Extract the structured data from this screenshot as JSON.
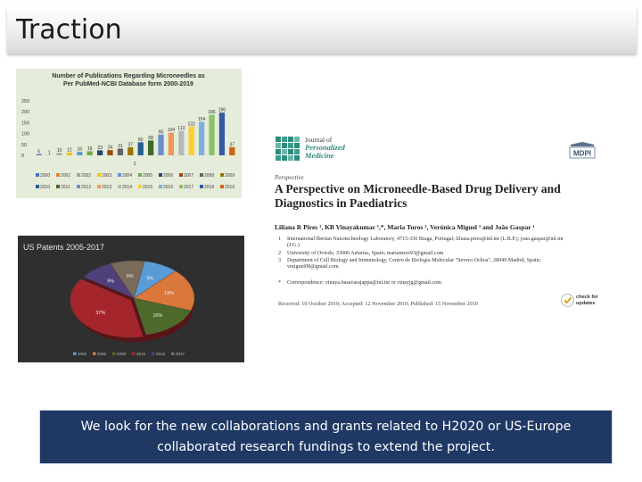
{
  "slide": {
    "title": "Traction"
  },
  "colors": {
    "banner": "#1f3864",
    "chart1_bg": "#e5ecd9",
    "chart2_bg": "#2f2f2f",
    "journal_accent": "#2e8a7a"
  },
  "chart_data": [
    {
      "type": "bar",
      "title": "Number of Publications Regarding Microneedles as Per PubMed-NCBI Database form 2000-2019",
      "categories": [
        "2000",
        "2001",
        "2002",
        "2003",
        "2004",
        "2005",
        "2006",
        "2007",
        "2008",
        "2009",
        "2010",
        "2011",
        "2012",
        "2013",
        "2014",
        "2015",
        "2016",
        "2017",
        "2018",
        "2019"
      ],
      "values": [
        5,
        1,
        10,
        12,
        16,
        19,
        23,
        24,
        31,
        37,
        60,
        68,
        95,
        104,
        113,
        132,
        154,
        186,
        196,
        37
      ],
      "value_labels": [
        "5",
        "1",
        "10",
        "12",
        "16",
        "19",
        "23",
        "24",
        "31",
        "37",
        "60",
        "68",
        "95",
        "104",
        "113",
        "132",
        "154",
        "186",
        "196",
        "37"
      ],
      "extra_label": "1",
      "yticks": [
        "250",
        "200",
        "150",
        "100",
        "50",
        "0"
      ],
      "ylim": [
        0,
        250
      ],
      "legend": [
        "2000",
        "2001",
        "2002",
        "2003",
        "2004",
        "2005",
        "2006",
        "2007",
        "2008",
        "2009",
        "2010",
        "2011",
        "2012",
        "2013",
        "2014",
        "2015",
        "2016",
        "2017",
        "2018",
        "2019"
      ],
      "colors": [
        "#4472c4",
        "#ed7d31",
        "#a5a5a5",
        "#ffc000",
        "#5b9bd5",
        "#70ad47",
        "#264478",
        "#9e480e",
        "#636363",
        "#997300",
        "#255e91",
        "#43682b",
        "#698ed0",
        "#f1975a",
        "#b7b7b7",
        "#ffcd33",
        "#7cafdd",
        "#8cc168",
        "#335aa1",
        "#d26012"
      ],
      "legend_placement": "bottom",
      "grid": false
    },
    {
      "type": "pie",
      "title": "US Patents 2005-2017",
      "slices": [
        {
          "label": "9%",
          "value": 9,
          "color": "#5b9bd5"
        },
        {
          "label": "18%",
          "value": 18,
          "color": "#d9783a"
        },
        {
          "label": "16%",
          "value": 16,
          "color": "#4e6a2b"
        },
        {
          "label": "37%",
          "value": 37,
          "color": "#a4262c"
        },
        {
          "label": "9%",
          "value": 9,
          "color": "#4f3f7a"
        },
        {
          "label": "9%",
          "value": 9,
          "color": "#7a6a5a"
        }
      ],
      "legend": [
        "2005",
        "2006",
        "2009",
        "2015",
        "2016",
        "2017"
      ],
      "legend_placement": "bottom"
    }
  ],
  "paper": {
    "journal_line1": "Journal of",
    "journal_line2": "Personalized",
    "journal_line3": "Medicine",
    "publisher": "MDPI",
    "type": "Perspective",
    "title": "A Perspective on Microneedle-Based Drug Delivery and Diagnostics in Paediatrics",
    "authors": "Liliana R Pires ¹, KB Vinayakumar ¹,*, Maria Turos ², Verónica Miguel ³ and João Gaspar ¹",
    "affiliations": [
      {
        "num": "1",
        "text": "International Iberian Nanotechnology Laboratory, 4715-330 Braga, Portugal; liliana.pires@inl.int (L.R.P.); joao.gaspar@inl.int (J.G.)"
      },
      {
        "num": "2",
        "text": "University of Oviedo, 33006 Asturias, Spain; mariaturos93@gmail.com"
      },
      {
        "num": "3",
        "text": "Department of Cell Biology and Immunology, Centro de Biología Molecular \"Severo Ochoa\", 28049 Madrid, Spain; vmiguel08@gmail.com"
      },
      {
        "num": "*",
        "text": "Correspondence: vinaya.basavarajappa@inl.int or vinayjg@gmail.com"
      }
    ],
    "received": "Received: 10 October 2019; Accepted: 12 November 2019; Published: 15 November 2019",
    "check_updates": "check for updates"
  },
  "banner": {
    "text": "We look for the new collaborations and grants related to H2020 or US-Europe collaborated research fundings to extend the project."
  }
}
